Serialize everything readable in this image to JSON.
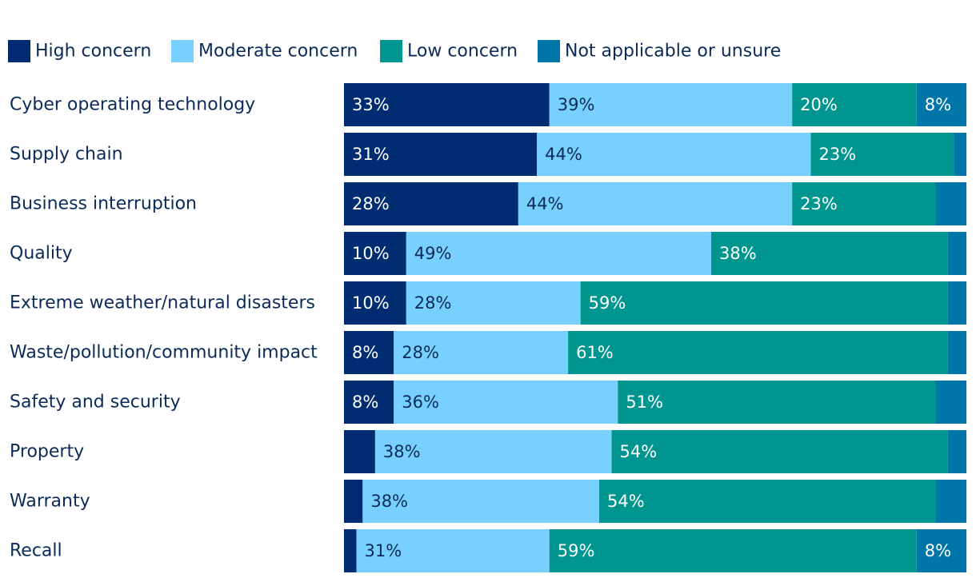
{
  "chart_data": {
    "type": "bar",
    "orientation": "horizontal",
    "stacked": true,
    "xlim": [
      0,
      100
    ],
    "legend_position": "top-left",
    "categories": [
      "Cyber operating technology",
      "Supply chain",
      "Business interruption",
      "Quality",
      "Extreme weather/natural disasters",
      "Waste/pollution/community impact",
      "Safety and security",
      "Property",
      "Warranty",
      "Recall"
    ],
    "series": [
      {
        "name": "High concern",
        "color": "#002d72",
        "label_color": "#ffffff",
        "values": [
          33,
          31,
          28,
          10,
          10,
          8,
          8,
          5,
          3,
          2
        ],
        "labels": [
          "33%",
          "31%",
          "28%",
          "10%",
          "10%",
          "8%",
          "8%",
          "",
          "",
          ""
        ]
      },
      {
        "name": "Moderate concern",
        "color": "#77d0fd",
        "label_color": "#0b2a59",
        "values": [
          39,
          44,
          44,
          49,
          28,
          28,
          36,
          38,
          38,
          31
        ],
        "labels": [
          "39%",
          "44%",
          "44%",
          "49%",
          "28%",
          "28%",
          "36%",
          "38%",
          "38%",
          "31%"
        ]
      },
      {
        "name": "Low concern",
        "color": "#00968f",
        "label_color": "#ffffff",
        "values": [
          20,
          23,
          23,
          38,
          59,
          61,
          51,
          54,
          54,
          59
        ],
        "labels": [
          "20%",
          "23%",
          "23%",
          "38%",
          "59%",
          "61%",
          "51%",
          "54%",
          "54%",
          "59%"
        ]
      },
      {
        "name": "Not applicable or unsure",
        "color": "#0076a8",
        "label_color": "#ffffff",
        "values": [
          8,
          2,
          5,
          3,
          3,
          3,
          5,
          3,
          5,
          8
        ],
        "labels": [
          "8%",
          "",
          "",
          "",
          "",
          "",
          "",
          "",
          "",
          "8%"
        ]
      }
    ]
  }
}
